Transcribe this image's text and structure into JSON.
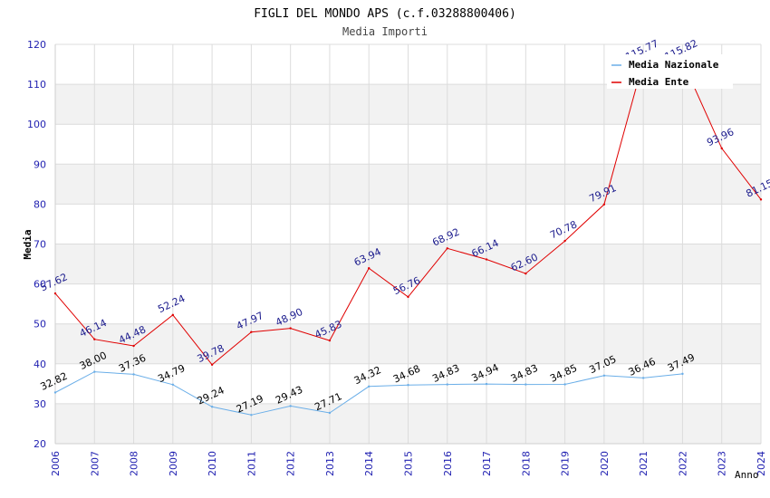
{
  "chart_data": {
    "type": "line",
    "title": "FIGLI DEL MONDO APS (c.f.03288800406)",
    "subtitle": "Media Importi",
    "xlabel": "Anno",
    "ylabel": "Media",
    "ylim": [
      20,
      120
    ],
    "yticks": [
      20,
      30,
      40,
      50,
      60,
      70,
      80,
      90,
      100,
      110,
      120
    ],
    "grid": true,
    "legend_position": "top-right",
    "x": [
      2006,
      2007,
      2008,
      2009,
      2010,
      2011,
      2012,
      2013,
      2014,
      2015,
      2016,
      2017,
      2018,
      2019,
      2020,
      2021,
      2022,
      2023,
      2024
    ],
    "series": [
      {
        "name": "Media Nazionale",
        "color": "#6aaee8",
        "label_color": "#000000",
        "x": [
          2006,
          2007,
          2008,
          2009,
          2010,
          2011,
          2012,
          2013,
          2014,
          2015,
          2016,
          2017,
          2018,
          2019,
          2020,
          2021,
          2022
        ],
        "values": [
          32.82,
          38.0,
          37.36,
          34.79,
          29.24,
          27.19,
          29.43,
          27.71,
          34.32,
          34.68,
          34.83,
          34.94,
          34.83,
          34.85,
          37.05,
          36.46,
          37.49
        ],
        "labels": [
          "32.82",
          "38.00",
          "37.36",
          "34.79",
          "29.24",
          "27.19",
          "29.43",
          "27.71",
          "34.32",
          "34.68",
          "34.83",
          "34.94",
          "34.83",
          "34.85",
          "37.05",
          "36.46",
          "37.49"
        ]
      },
      {
        "name": "Media Ente",
        "color": "#e00000",
        "label_color": "#1a1a8c",
        "x": [
          2006,
          2007,
          2008,
          2009,
          2010,
          2011,
          2012,
          2013,
          2014,
          2015,
          2016,
          2017,
          2018,
          2019,
          2020,
          2021,
          2022,
          2023,
          2024
        ],
        "values": [
          57.62,
          46.14,
          44.48,
          52.24,
          39.78,
          47.97,
          48.9,
          45.83,
          63.94,
          56.76,
          68.92,
          66.14,
          62.6,
          70.78,
          79.91,
          115.77,
          115.82,
          93.96,
          81.15
        ],
        "labels": [
          "57.62",
          "46.14",
          "44.48",
          "52.24",
          "39.78",
          "47.97",
          "48.90",
          "45.83",
          "63.94",
          "56.76",
          "68.92",
          "66.14",
          "62.60",
          "70.78",
          "79.91",
          "115.77",
          "115.82",
          "93.96",
          "81.15"
        ]
      }
    ]
  }
}
